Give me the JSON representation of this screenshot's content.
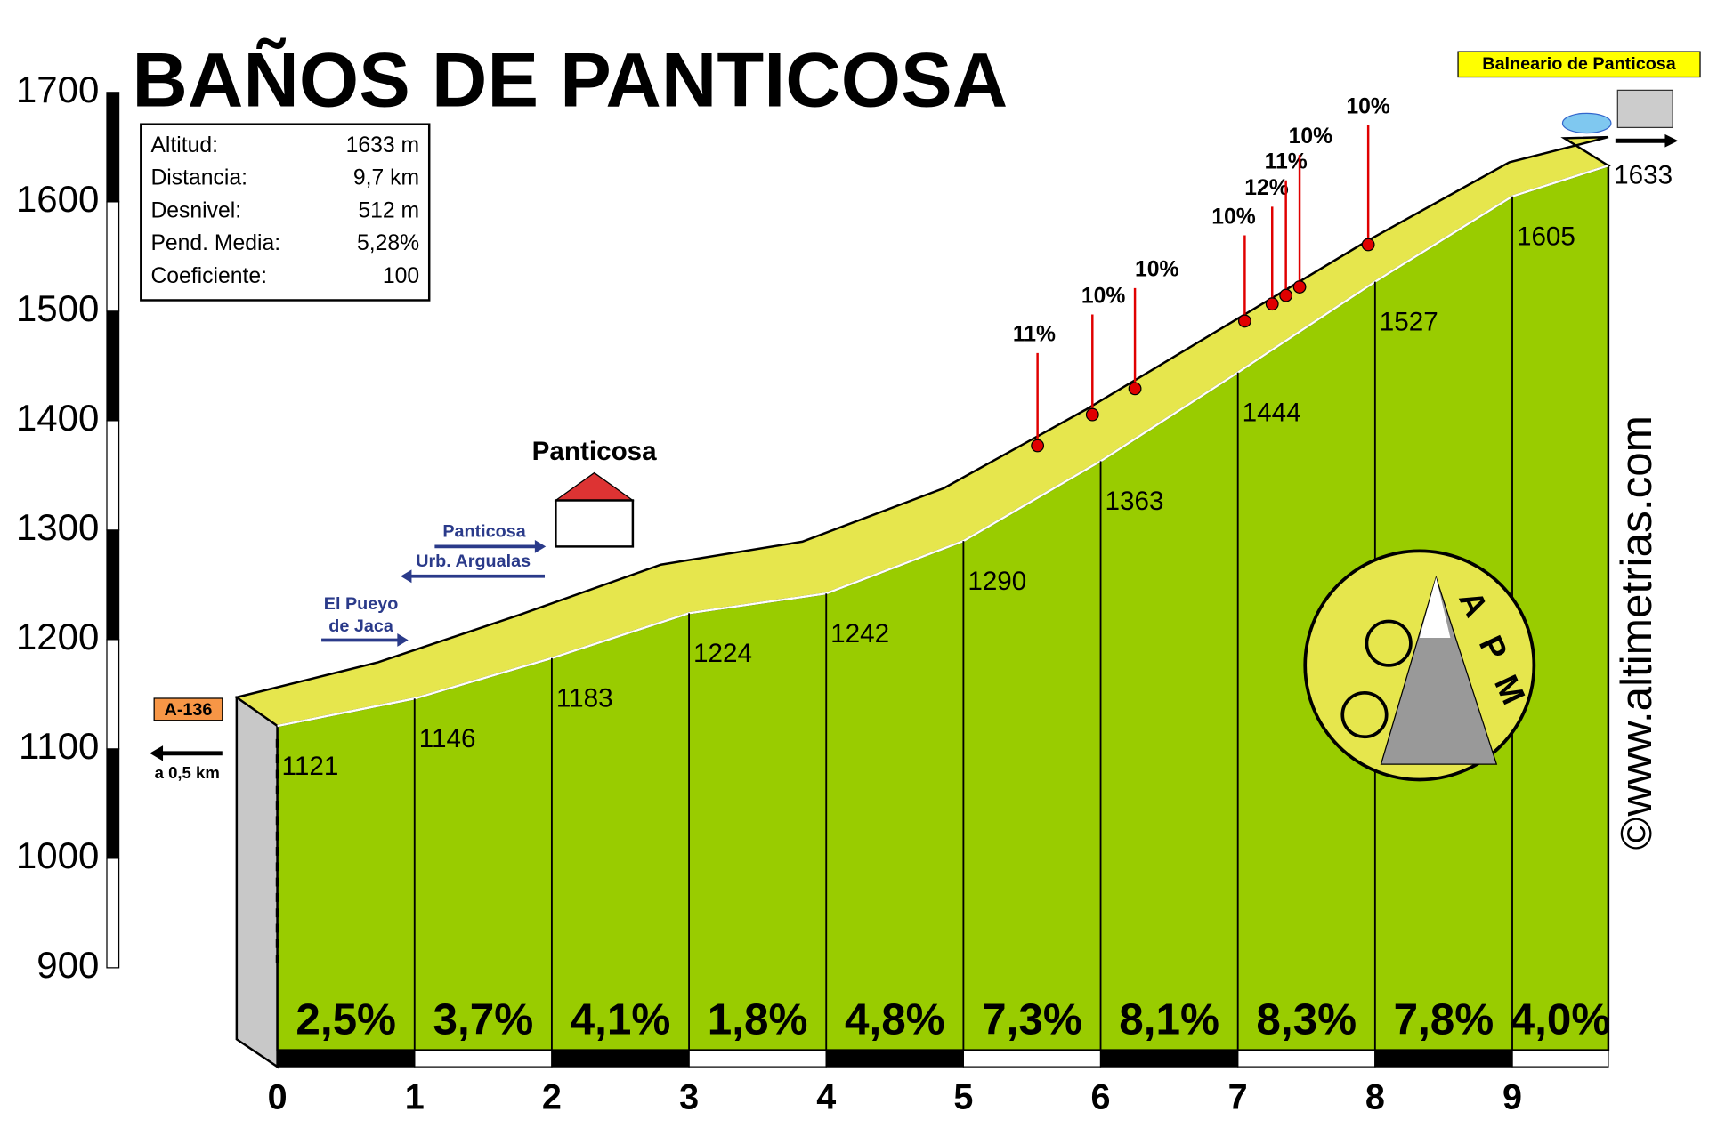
{
  "chart_data": {
    "type": "area",
    "title": "BAÑOS DE PANTICOSA",
    "info": [
      [
        "Altitud:",
        "1633 m"
      ],
      [
        "Distancia:",
        "9,7 km"
      ],
      [
        "Desnivel:",
        "512 m"
      ],
      [
        "Pend. Media:",
        "5,28%"
      ],
      [
        "Coeficiente:",
        "100"
      ]
    ],
    "x": [
      0,
      1,
      2,
      3,
      4,
      5,
      6,
      7,
      8,
      9,
      9.7
    ],
    "values": [
      1121,
      1146,
      1183,
      1224,
      1242,
      1290,
      1363,
      1444,
      1527,
      1605,
      1633
    ],
    "gradients": [
      2.5,
      3.7,
      4.1,
      1.8,
      4.8,
      7.3,
      8.1,
      8.3,
      7.8,
      4.0
    ],
    "gradient_labels": [
      "2,5%",
      "3,7%",
      "4,1%",
      "1,8%",
      "4,8%",
      "7,3%",
      "8,1%",
      "8,3%",
      "7,8%",
      "4,0%"
    ],
    "steep_points": [
      {
        "x": 5.54,
        "value": 11,
        "label": "11%"
      },
      {
        "x": 5.94,
        "value": 10,
        "label": "10%"
      },
      {
        "x": 6.25,
        "value": 10,
        "label": "10%"
      },
      {
        "x": 7.05,
        "value": 10,
        "label": "10%"
      },
      {
        "x": 7.25,
        "value": 12,
        "label": "12%"
      },
      {
        "x": 7.35,
        "value": 11,
        "label": "11%"
      },
      {
        "x": 7.45,
        "value": 10,
        "label": "10%"
      },
      {
        "x": 7.95,
        "value": 10,
        "label": "10%"
      }
    ],
    "xlim": [
      0,
      9.7
    ],
    "xticks": [
      0,
      1,
      2,
      3,
      4,
      5,
      6,
      7,
      8,
      9
    ],
    "ylim": [
      900,
      1700
    ],
    "yticks": [
      900,
      1000,
      1100,
      1200,
      1300,
      1400,
      1500,
      1600,
      1700
    ],
    "colors": {
      "area": "#99cc00",
      "road": "#e6e64d",
      "side": "#c8c8c8",
      "steep": "#e00000"
    },
    "places": {
      "town": "Panticosa",
      "road": "A-136",
      "road_distance": "a 0,5 km",
      "destination": "Balneario de Panticosa",
      "directions": [
        "Panticosa",
        "Urb. Argualas"
      ],
      "pueyo": [
        "El Pueyo",
        "de Jaca"
      ]
    },
    "website": "www.altimetrias.com",
    "copyright": "©",
    "logo": [
      "A",
      "P",
      "M"
    ]
  }
}
